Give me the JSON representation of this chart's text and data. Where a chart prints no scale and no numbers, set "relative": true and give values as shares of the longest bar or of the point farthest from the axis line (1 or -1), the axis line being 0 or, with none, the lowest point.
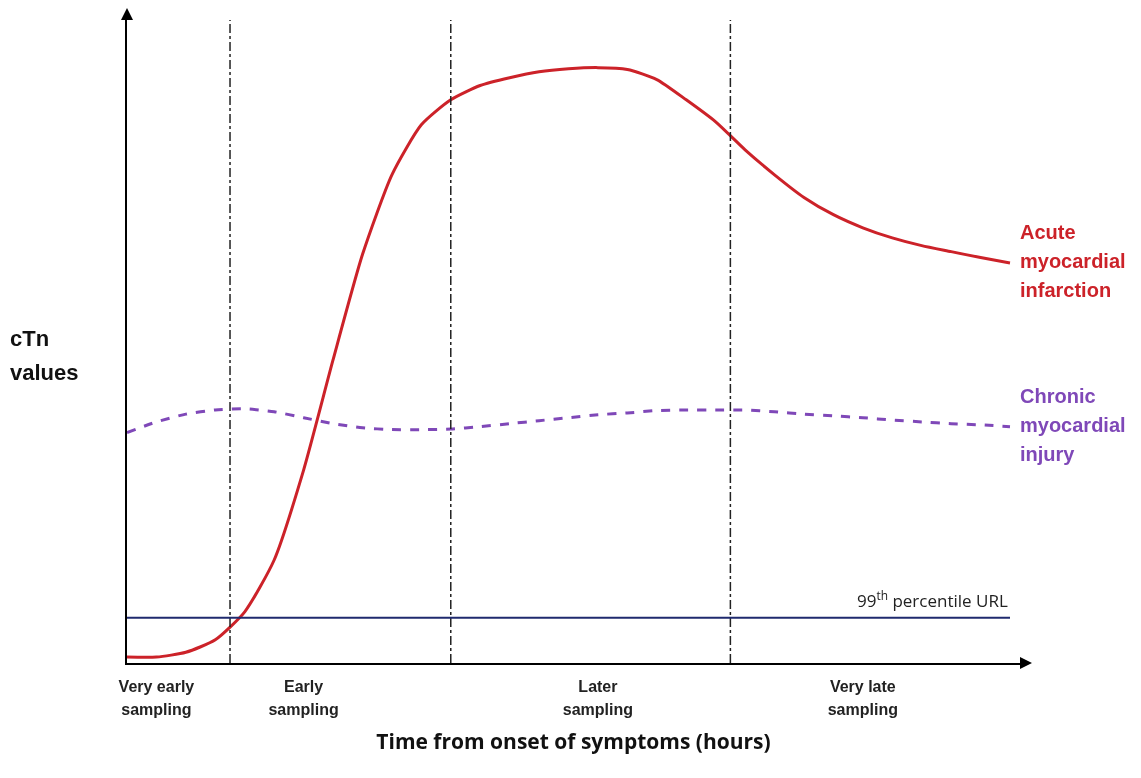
{
  "chart_data": {
    "type": "line",
    "relative": true,
    "xlabel": "Time from onset of symptoms (hours)",
    "ylabel": "cTn values",
    "categories": [
      null,
      "Very early sampling",
      null,
      null,
      null,
      null,
      "Early sampling",
      null,
      null,
      null,
      null,
      null,
      null,
      null,
      null,
      null,
      "Later sampling",
      null,
      null,
      null,
      null,
      null,
      null,
      null,
      null,
      "Very late sampling",
      null,
      null,
      null,
      null,
      null
    ],
    "series": [
      {
        "name": "Acute myocardial infarction",
        "color": "#cc2229",
        "line_style": "solid",
        "values": [
          0.01,
          0.01,
          0.018,
          0.039,
          0.086,
          0.173,
          0.324,
          0.509,
          0.686,
          0.82,
          0.904,
          0.946,
          0.97,
          0.983,
          0.993,
          0.998,
          1.0,
          0.997,
          0.98,
          0.946,
          0.909,
          0.862,
          0.82,
          0.782,
          0.753,
          0.731,
          0.714,
          0.701,
          0.691,
          0.681,
          0.672
        ]
      },
      {
        "name": "Chronic myocardial injury",
        "color": "#7f48b8",
        "line_style": "dashed",
        "values": [
          0.387,
          0.405,
          0.418,
          0.425,
          0.427,
          0.422,
          0.412,
          0.402,
          0.395,
          0.392,
          0.392,
          0.393,
          0.397,
          0.402,
          0.407,
          0.412,
          0.417,
          0.42,
          0.424,
          0.425,
          0.425,
          0.425,
          0.422,
          0.418,
          0.415,
          0.412,
          0.408,
          0.405,
          0.402,
          0.4,
          0.397
        ]
      }
    ],
    "ref_lines": [
      {
        "axis": "y",
        "value": 0.076,
        "label": "99$^{th}$ percentile URL",
        "color": "#1f2a6e",
        "line_style": "solid"
      }
    ],
    "legend": false,
    "grid": "x"
  }
}
